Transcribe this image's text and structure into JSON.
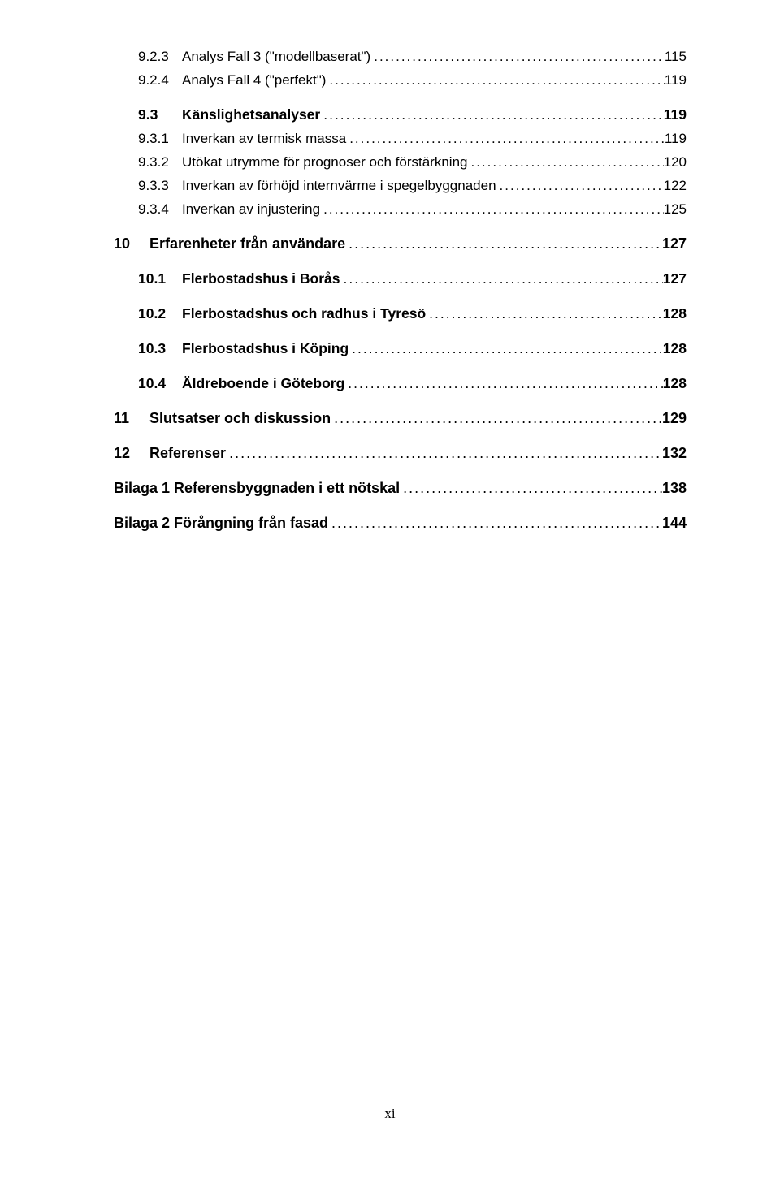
{
  "entries": [
    {
      "level": 3,
      "num": "9.2.3",
      "title": "Analys Fall 3 (\"modellbaserat\")",
      "page": "115",
      "gap": "small"
    },
    {
      "level": 3,
      "num": "9.2.4",
      "title": "Analys Fall 4 (\"perfekt\")",
      "page": "119",
      "gap": "med"
    },
    {
      "level": 2,
      "num": "9.3",
      "title": "Känslighetsanalyser",
      "page": "119",
      "gap": "small"
    },
    {
      "level": 3,
      "num": "9.3.1",
      "title": "Inverkan av termisk massa",
      "page": "119",
      "gap": "small"
    },
    {
      "level": 3,
      "num": "9.3.2",
      "title": "Utökat utrymme för prognoser och förstärkning",
      "page": "120",
      "gap": "small"
    },
    {
      "level": 3,
      "num": "9.3.3",
      "title": "Inverkan av förhöjd internvärme i spegelbyggnaden",
      "page": "122",
      "gap": "small"
    },
    {
      "level": 3,
      "num": "9.3.4",
      "title": "Inverkan av injustering",
      "page": "125",
      "gap": "med"
    },
    {
      "level": 1,
      "num": "10",
      "title": "Erfarenheter från användare",
      "page": "127",
      "gap": "med"
    },
    {
      "level": 2,
      "num": "10.1",
      "title": "Flerbostadshus i Borås",
      "page": "127",
      "gap": "med"
    },
    {
      "level": 2,
      "num": "10.2",
      "title": "Flerbostadshus och radhus i Tyresö",
      "page": "128",
      "gap": "med"
    },
    {
      "level": 2,
      "num": "10.3",
      "title": "Flerbostadshus i Köping",
      "page": "128",
      "gap": "med"
    },
    {
      "level": 2,
      "num": "10.4",
      "title": "Äldreboende i Göteborg",
      "page": "128",
      "gap": "med"
    },
    {
      "level": 1,
      "num": "11",
      "title": "Slutsatser och diskussion",
      "page": "129",
      "gap": "med"
    },
    {
      "level": 1,
      "num": "12",
      "title": "Referenser",
      "page": "132",
      "gap": "med"
    },
    {
      "level": 0,
      "num": "",
      "title": "Bilaga 1 Referensbyggnaden i ett nötskal",
      "page": "138",
      "gap": "med"
    },
    {
      "level": 0,
      "num": "",
      "title": "Bilaga 2 Förångning från fasad",
      "page": "144",
      "gap": "med"
    }
  ],
  "page_number": "xi",
  "colors": {
    "background": "#ffffff",
    "text": "#000000"
  },
  "typography": {
    "body_font": "Arial",
    "body_size_pt": 13,
    "page_num_font": "Times New Roman"
  }
}
